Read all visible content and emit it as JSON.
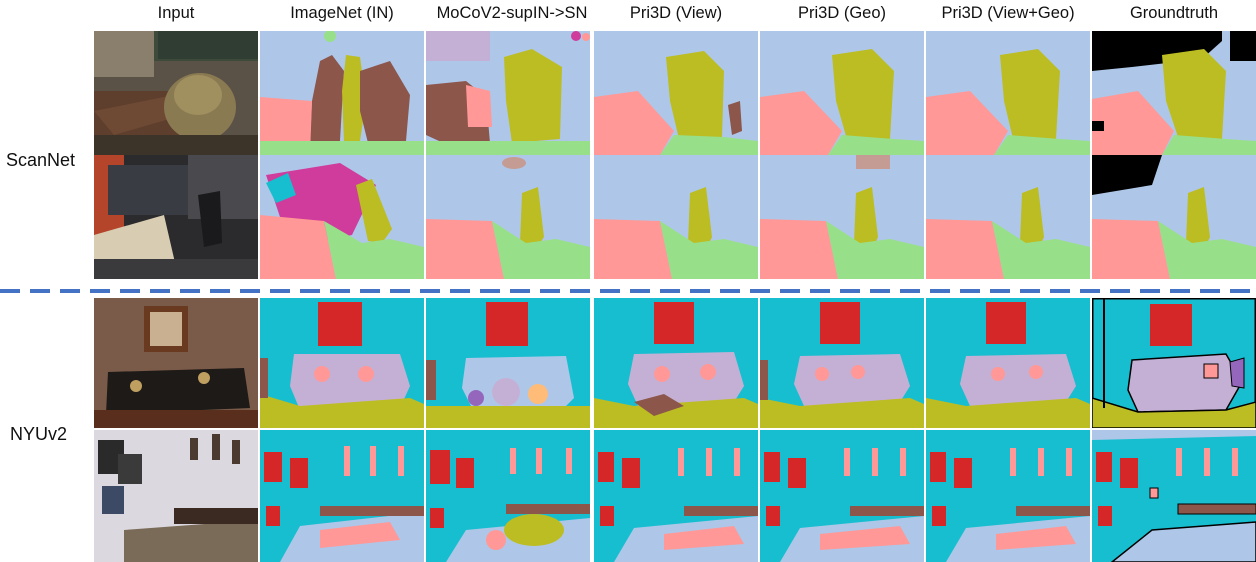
{
  "columns": [
    {
      "label": "Input"
    },
    {
      "label": "ImageNet (IN)"
    },
    {
      "label": "MoCoV2-supIN->SN"
    },
    {
      "label": "Pri3D (View)"
    },
    {
      "label": "Pri3D (Geo)"
    },
    {
      "label": "Pri3D (View+Geo)"
    },
    {
      "label": "Groundtruth"
    }
  ],
  "datasets": [
    {
      "label": "ScanNet"
    },
    {
      "label": "NYUv2"
    }
  ],
  "colors": {
    "wall_scannet": "#aec7e8",
    "floor": "#98df8a",
    "chair": "#bcbd22",
    "table": "#ff9896",
    "other_brown": "#8c564b",
    "magenta": "#cf3c9c",
    "pink_light": "#c5b0d5",
    "wall_nyu": "#17becf",
    "picture": "#d62728",
    "sofa": "#c5b0d5",
    "pillow": "#ff9896",
    "floor_nyu": "#bcbd22",
    "bed": "#aec7e8",
    "unlabeled": "#000000",
    "divider": "#4472c4"
  }
}
